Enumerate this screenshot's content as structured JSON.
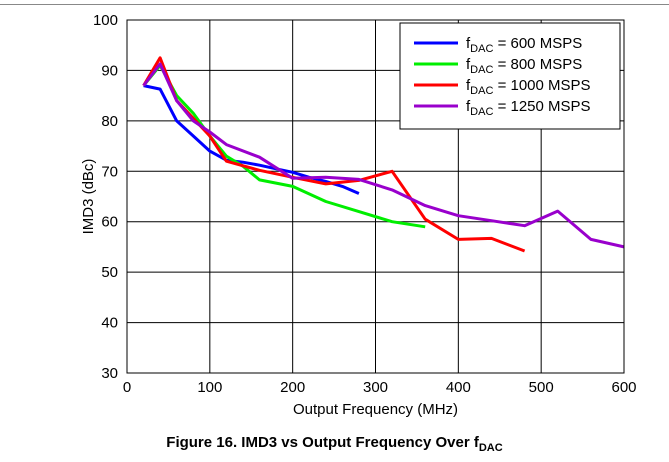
{
  "chart_data": {
    "type": "line",
    "xlabel": "Output Frequency (MHz)",
    "ylabel": "IMD3 (dBc)",
    "xlim": [
      0,
      600
    ],
    "ylim": [
      30,
      100
    ],
    "xticks": [
      0,
      100,
      200,
      300,
      400,
      500,
      600
    ],
    "yticks": [
      30,
      40,
      50,
      60,
      70,
      80,
      90,
      100
    ],
    "grid": true,
    "legend_position": "top-right",
    "series": [
      {
        "name": "fDAC = 600 MSPS",
        "label_main": "f",
        "label_sub": "DAC",
        "label_rest": " = 600 MSPS",
        "color": "#0000ff",
        "x": [
          20,
          40,
          60,
          80,
          100,
          120,
          140,
          160,
          180,
          200,
          220,
          240,
          260,
          280
        ],
        "y": [
          87,
          86.3,
          80,
          77,
          74,
          72.2,
          71.8,
          71.2,
          70.5,
          69.8,
          68.8,
          68,
          67,
          65.6
        ]
      },
      {
        "name": "fDAC = 800 MSPS",
        "label_main": "f",
        "label_sub": "DAC",
        "label_rest": " = 800 MSPS",
        "color": "#00ee00",
        "x": [
          20,
          40,
          60,
          80,
          100,
          120,
          140,
          160,
          200,
          240,
          280,
          320,
          360
        ],
        "y": [
          87,
          91,
          85,
          81.5,
          77,
          73,
          71,
          68.3,
          67,
          64,
          62,
          60,
          59
        ]
      },
      {
        "name": "fDAC = 1000 MSPS",
        "label_main": "f",
        "label_sub": "DAC",
        "label_rest": " = 1000 MSPS",
        "color": "#ff0000",
        "x": [
          20,
          40,
          60,
          80,
          100,
          120,
          160,
          200,
          240,
          280,
          320,
          360,
          400,
          440,
          480
        ],
        "y": [
          87,
          92.5,
          84,
          80.5,
          77,
          72,
          70.2,
          68.8,
          67.5,
          68.2,
          70,
          60.5,
          56.5,
          56.7,
          54.2
        ]
      },
      {
        "name": "fDAC = 1250 MSPS",
        "label_main": "f",
        "label_sub": "DAC",
        "label_rest": " = 1250 MSPS",
        "color": "#9900cc",
        "x": [
          20,
          40,
          60,
          80,
          100,
          120,
          160,
          200,
          240,
          280,
          320,
          360,
          400,
          440,
          480,
          520,
          560,
          600
        ],
        "y": [
          87,
          91.3,
          84,
          80,
          77.8,
          75.3,
          72.8,
          68.6,
          68.8,
          68.4,
          66.3,
          63.2,
          61.2,
          60.2,
          59.2,
          62.1,
          56.5,
          55
        ]
      }
    ]
  },
  "caption": {
    "main": "Figure 16. IMD3 vs Output Frequency Over f",
    "sub": "DAC"
  }
}
